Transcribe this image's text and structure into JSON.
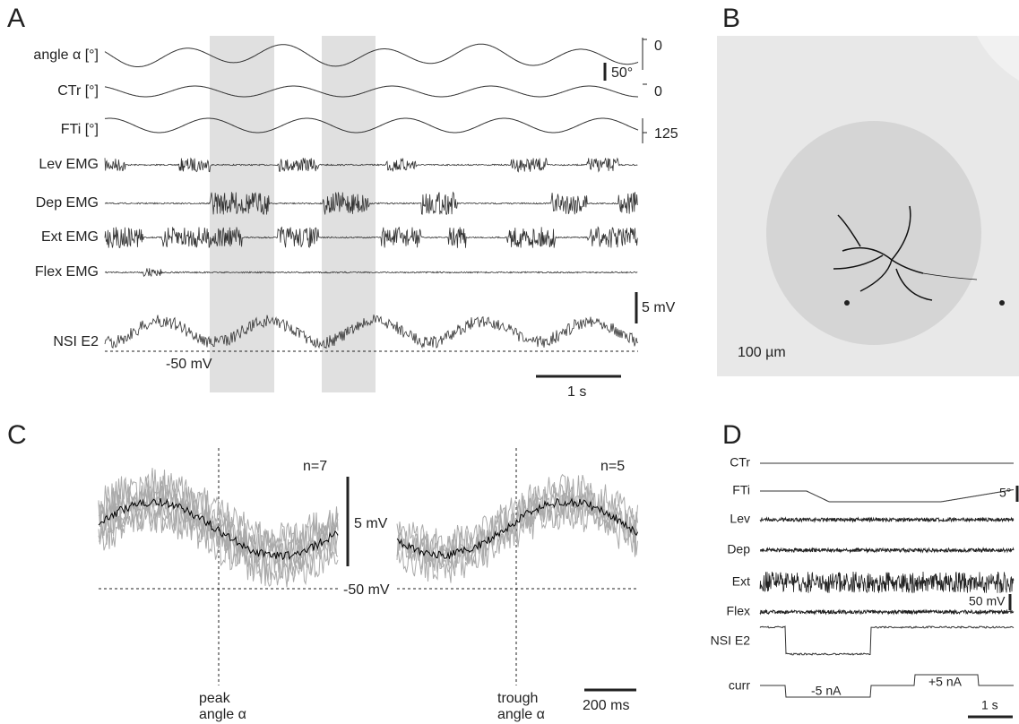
{
  "panel_a": {
    "label": "A",
    "traces": [
      "angle α [°]",
      "CTr [°]",
      "FTi [°]",
      "Lev EMG",
      "Dep EMG",
      "Ext EMG",
      "Flex EMG"
    ],
    "nsi": "NSI E2",
    "angle_zero": "0",
    "angle_bar": "50°",
    "ctr_zero": "0",
    "fti_value": "125",
    "voltage_bar": "5 mV",
    "rest": "-50 mV",
    "time_bar": "1 s"
  },
  "panel_b": {
    "label": "B",
    "scale": "100 µm"
  },
  "panel_c": {
    "label": "C",
    "n_left": "n=7",
    "n_right": "n=5",
    "voltage_bar": "5 mV",
    "rest": "-50 mV",
    "peak": [
      "peak",
      "angle α"
    ],
    "trough": [
      "trough",
      "angle α"
    ],
    "time_bar": "200 ms"
  },
  "panel_d": {
    "label": "D",
    "traces": [
      "CTr",
      "FTi",
      "Lev",
      "Dep",
      "Ext",
      "Flex"
    ],
    "angle_bar": "5°",
    "voltage_bar": "50 mV",
    "nsi": "NSI E2",
    "curr": "curr",
    "neg_current": "-5 nA",
    "pos_current": "+5 nA",
    "time_bar": "1 s"
  }
}
